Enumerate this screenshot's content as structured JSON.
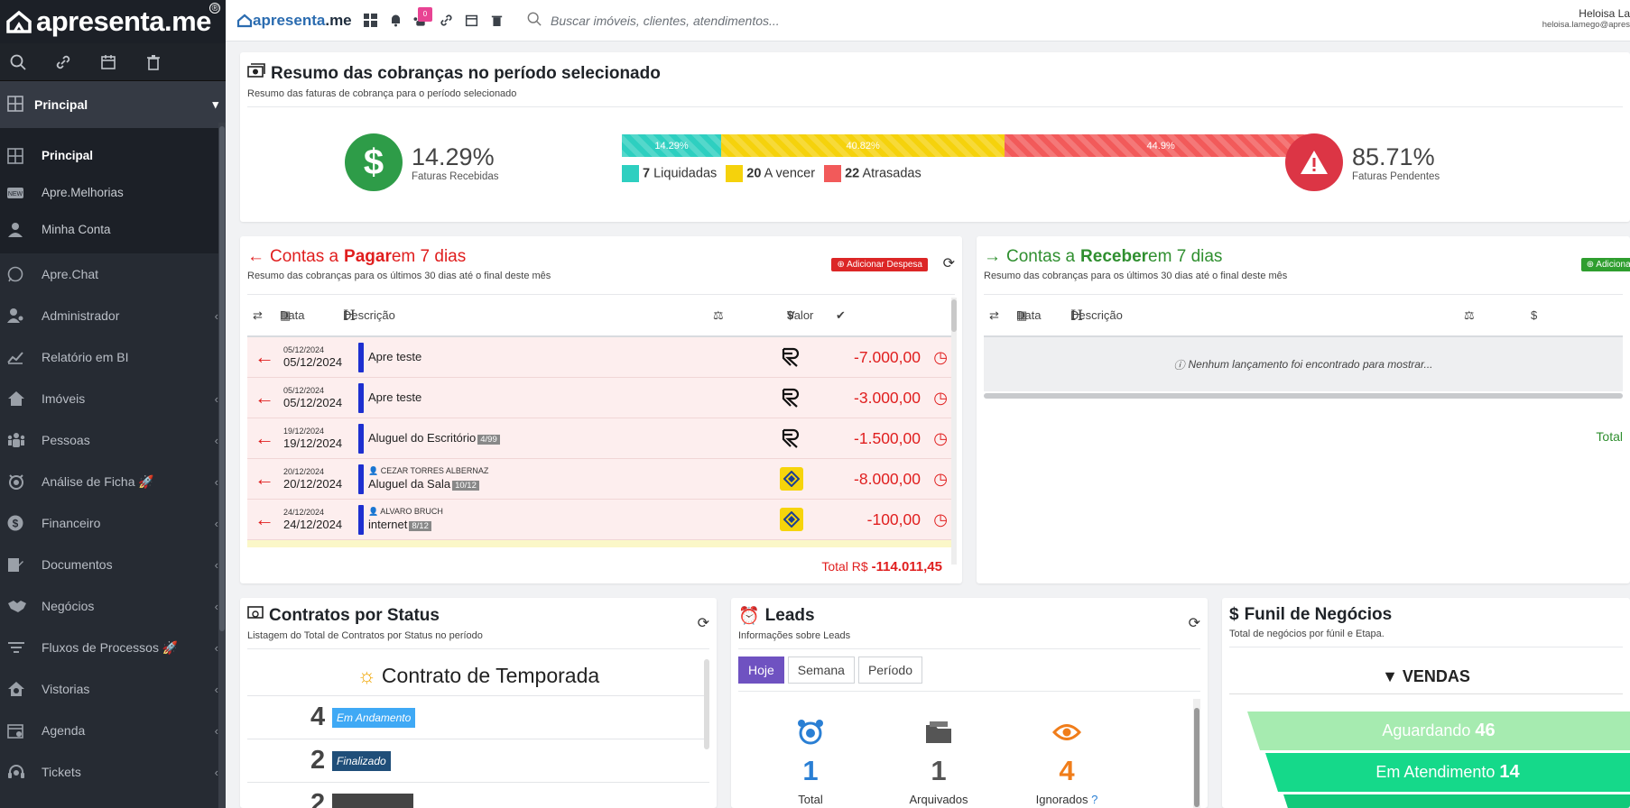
{
  "brand": {
    "name": "apresenta.me",
    "reg": "®"
  },
  "sidebar": {
    "section": "Principal",
    "sub_items": [
      {
        "label": "Principal",
        "icon": "grid-icon",
        "active": true
      },
      {
        "label": "Apre.Melhorias",
        "icon": "new-icon",
        "active": false
      },
      {
        "label": "Minha Conta",
        "icon": "user-icon",
        "active": false
      }
    ],
    "menu": [
      {
        "label": "Apre.Chat",
        "icon": "whatsapp-icon",
        "arrow": false
      },
      {
        "label": "Administrador",
        "icon": "admin-icon",
        "arrow": true
      },
      {
        "label": "Relatório em BI",
        "icon": "chart-icon",
        "arrow": false
      },
      {
        "label": "Imóveis",
        "icon": "home-icon",
        "arrow": true
      },
      {
        "label": "Pessoas",
        "icon": "people-icon",
        "arrow": true
      },
      {
        "label": "Análise de Ficha 🚀",
        "icon": "analysis-icon",
        "arrow": true
      },
      {
        "label": "Financeiro",
        "icon": "dollar-icon",
        "arrow": true
      },
      {
        "label": "Documentos",
        "icon": "document-icon",
        "arrow": true
      },
      {
        "label": "Negócios",
        "icon": "handshake-icon",
        "arrow": true
      },
      {
        "label": "Fluxos de Processos 🚀",
        "icon": "filter-icon",
        "arrow": true
      },
      {
        "label": "Vistorias",
        "icon": "inspection-icon",
        "arrow": true
      },
      {
        "label": "Agenda",
        "icon": "calendar-icon",
        "arrow": true
      },
      {
        "label": "Tickets",
        "icon": "headset-icon",
        "arrow": true
      }
    ]
  },
  "topbar": {
    "logo": "apresenta",
    "logo_suffix": "me",
    "badge": "0",
    "search_placeholder": "Buscar imóveis, clientes, atendimentos...",
    "user_name": "Heloisa La",
    "user_email": "heloisa.lamego@apres"
  },
  "summary": {
    "title": "Resumo das cobranças no período selecionado",
    "subtitle": "Resumo das faturas de cobrança para o período selecionado",
    "received_pct": "14.29%",
    "received_label": "Faturas Recebidas",
    "pending_pct": "85.71%",
    "pending_label": "Faturas Pendentes",
    "bar": [
      {
        "label": "14.29%",
        "value": 14.29,
        "color": "#2ecfc0"
      },
      {
        "label": "40.82%",
        "value": 40.82,
        "color": "#f5d20c"
      },
      {
        "label": "44.9%",
        "value": 44.9,
        "color": "#f25a5a"
      }
    ],
    "legend": [
      {
        "count": "7",
        "label": "Liquidadas",
        "color": "#2ecfc0"
      },
      {
        "count": "20",
        "label": "A vencer",
        "color": "#f5d20c"
      },
      {
        "count": "22",
        "label": "Atrasadas",
        "color": "#f25a5a"
      }
    ]
  },
  "pagar": {
    "title_pre": "Contas a ",
    "title_b": "Pagar",
    "title_post": " em 7 dias",
    "subtitle": "Resumo das cobranças para os últimos 30 dias até o final deste mês",
    "add_button": "Adicionar Despesa",
    "cols": {
      "date": "Data",
      "desc": "Descrição",
      "value": "Valor"
    },
    "rows": [
      {
        "date_small": "05/12/2024",
        "date": "05/12/2024",
        "person": "",
        "desc": "Apre teste",
        "tag": "",
        "bank": "r",
        "value": "-7.000,00"
      },
      {
        "date_small": "05/12/2024",
        "date": "05/12/2024",
        "person": "",
        "desc": "Apre teste",
        "tag": "",
        "bank": "r",
        "value": "-3.000,00"
      },
      {
        "date_small": "19/12/2024",
        "date": "19/12/2024",
        "person": "",
        "desc": "Aluguel do Escritório",
        "tag": "4/99",
        "bank": "r",
        "value": "-1.500,00"
      },
      {
        "date_small": "20/12/2024",
        "date": "20/12/2024",
        "person": "CEZAR TORRES ALBERNAZ",
        "desc": "Aluguel da Sala",
        "tag": "10/12",
        "bank": "bb",
        "value": "-8.000,00"
      },
      {
        "date_small": "24/12/2024",
        "date": "24/12/2024",
        "person": "ALVARO BRUCH",
        "desc": "internet",
        "tag": "8/12",
        "bank": "bb",
        "value": "-100,00"
      }
    ],
    "total_label": "Total R$",
    "total_value": "-114.011,45"
  },
  "receber": {
    "title_pre": "Contas a ",
    "title_b": "Receber",
    "title_post": " em 7 dias",
    "subtitle": "Resumo das cobranças para os últimos 30 dias até o final deste mês",
    "add_button": "Adicionar",
    "cols": {
      "date": "Data",
      "desc": "Descrição",
      "value": "$"
    },
    "empty": "Nenhum lançamento foi encontrado para mostrar...",
    "total_label": "Total"
  },
  "contratos": {
    "title": "Contratos por Status",
    "subtitle": "Listagem do Total de Contratos por Status no período",
    "group": "Contrato de Temporada",
    "rows": [
      {
        "count": "4",
        "label": "Em Andamento",
        "color": "#3fa9f5"
      },
      {
        "count": "2",
        "label": "Finalizado",
        "color": "#1f4e79"
      },
      {
        "count": "2",
        "label": "",
        "color": "#444"
      }
    ]
  },
  "leads": {
    "title": "Leads",
    "subtitle": "Informações sobre Leads",
    "tabs": [
      "Hoje",
      "Semana",
      "Período"
    ],
    "stats": [
      {
        "n": "1",
        "label": "Total",
        "color": "#2a7fd4"
      },
      {
        "n": "1",
        "label": "Arquivados",
        "color": "#555"
      },
      {
        "n": "4",
        "label": "Ignorados",
        "color": "#f07d1a"
      }
    ]
  },
  "funil": {
    "title": "Funil de Negócios",
    "subtitle": "Total de negócios por fúnil e Etapa.",
    "group": "VENDAS",
    "stages": [
      {
        "label": "Aguardando",
        "count": "46",
        "color": "#a6ebb0"
      },
      {
        "label": "Em Atendimento",
        "count": "14",
        "color": "#15d98a"
      },
      {
        "label": "",
        "count": "",
        "color": "#12c97a"
      }
    ]
  }
}
